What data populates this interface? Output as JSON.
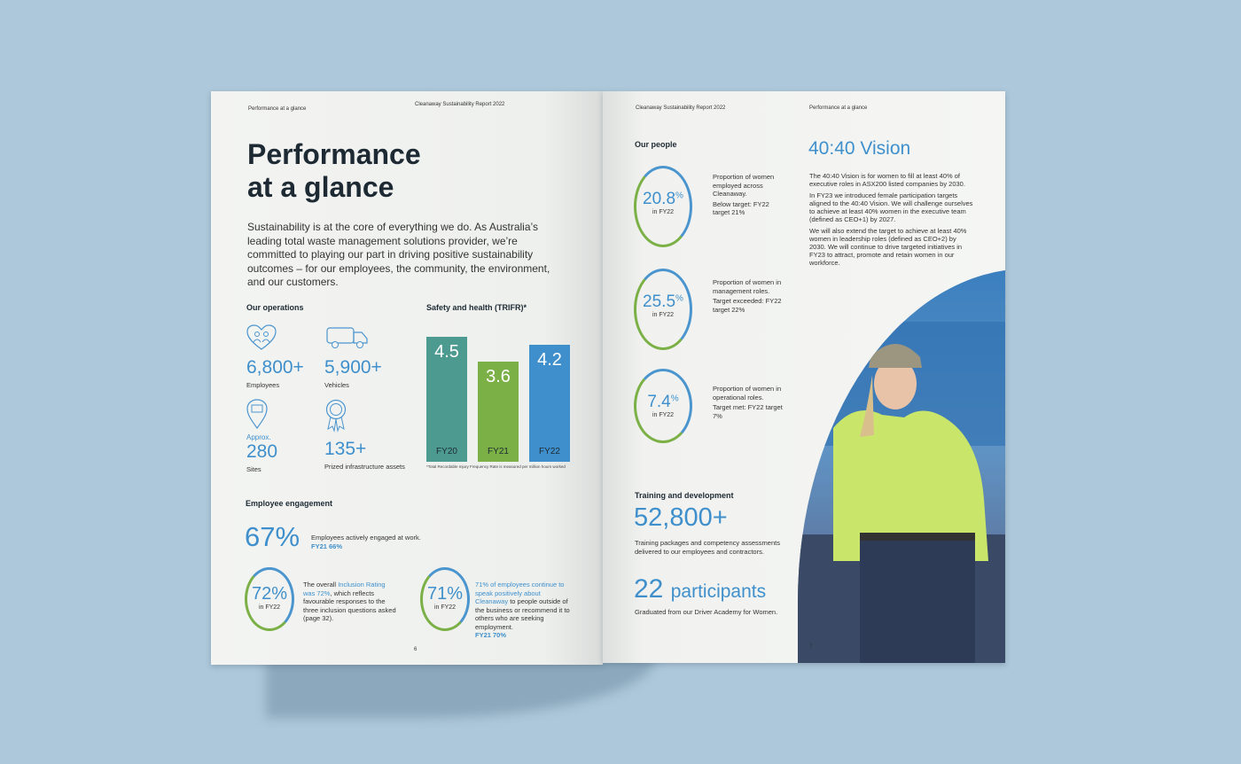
{
  "left_page": {
    "header_left": "Performance at a glance",
    "header_right": "Cleanaway Sustainability Report 2022",
    "title_line1": "Performance",
    "title_line2": "at a glance",
    "intro": "Sustainability is at the core of everything we do. As Australia’s leading total waste management solutions provider, we’re committed to playing our part in driving positive sustainability outcomes – for our employees, the community, the environment, and our customers.",
    "operations": {
      "heading": "Our operations",
      "items": [
        {
          "value": "6,800+",
          "label": "Employees",
          "icon": "people-heart-icon"
        },
        {
          "value": "5,900+",
          "label": "Vehicles",
          "icon": "truck-icon"
        },
        {
          "prefix": "Approx.",
          "value": "280",
          "label": "Sites",
          "icon": "location-pin-icon"
        },
        {
          "value": "135+",
          "label": "Prized infrastructure assets",
          "icon": "award-ribbon-icon"
        }
      ]
    },
    "engagement": {
      "heading": "Employee engagement",
      "headline_value": "67%",
      "headline_text": "Employees actively engaged at work.",
      "headline_sub": "FY21 66%",
      "inclusion": {
        "value": "72%",
        "period": "in FY22",
        "text_pre": "The overall ",
        "text_link": "Inclusion Rating was 72%",
        "text_post": ", which reflects favourable responses to the three inclusion questions asked (page 32)."
      },
      "advocacy": {
        "value": "71%",
        "period": "in FY22",
        "text_link": "71% of employees continue to speak positively about Cleanaway",
        "text_post": " to people outside of the business or recommend it to others who are seeking employment.",
        "sub": "FY21 70%"
      }
    },
    "page_number": "6"
  },
  "chart_data": {
    "type": "bar",
    "title": "Safety and health (TRIFR)*",
    "categories": [
      "FY20",
      "FY21",
      "FY22"
    ],
    "values": [
      4.5,
      3.6,
      4.2
    ],
    "colors": [
      "#4d9a91",
      "#7bb046",
      "#3e8fcb"
    ],
    "footnote": "*Total Recordable Injury Frequency Rate is measured per million hours worked"
  },
  "right_page": {
    "header_left": "Cleanaway Sustainability Report 2022",
    "header_right": "Performance at a glance",
    "people": {
      "heading": "Our people",
      "stats": [
        {
          "value": "20.8",
          "unit": "%",
          "period": "in FY22",
          "desc": "Proportion of women employed across Cleanaway.",
          "target": "Below target: FY22 target 21%"
        },
        {
          "value": "25.5",
          "unit": "%",
          "period": "in FY22",
          "desc": "Proportion of women in management roles.",
          "target": "Target exceeded: FY22 target 22%"
        },
        {
          "value": "7.4",
          "unit": "%",
          "period": "in FY22",
          "desc": "Proportion of women in operational roles.",
          "target": "Target met: FY22 target 7%"
        }
      ]
    },
    "vision": {
      "title": "40:40 Vision",
      "p1": "The 40:40 Vision is for women to fill at least 40% of executive roles in ASX200 listed companies by 2030.",
      "p2": "In FY23 we introduced female participation targets aligned to the 40:40 Vision. We will challenge ourselves to achieve at least 40% women in the executive team (defined as CEO+1) by 2027.",
      "p3": "We will also extend the target to achieve at least 40% women in leadership roles (defined as CEO+2) by 2030. We will continue to drive targeted initiatives in FY23 to attract, promote and retain women in our workforce."
    },
    "training": {
      "heading": "Training and development",
      "value": "52,800+",
      "text": "Training packages and competency assessments delivered to our employees and contractors.",
      "participants_value": "22",
      "participants_word": "participants",
      "participants_text": "Graduated from our Driver Academy for Women."
    },
    "page_number": "7"
  }
}
